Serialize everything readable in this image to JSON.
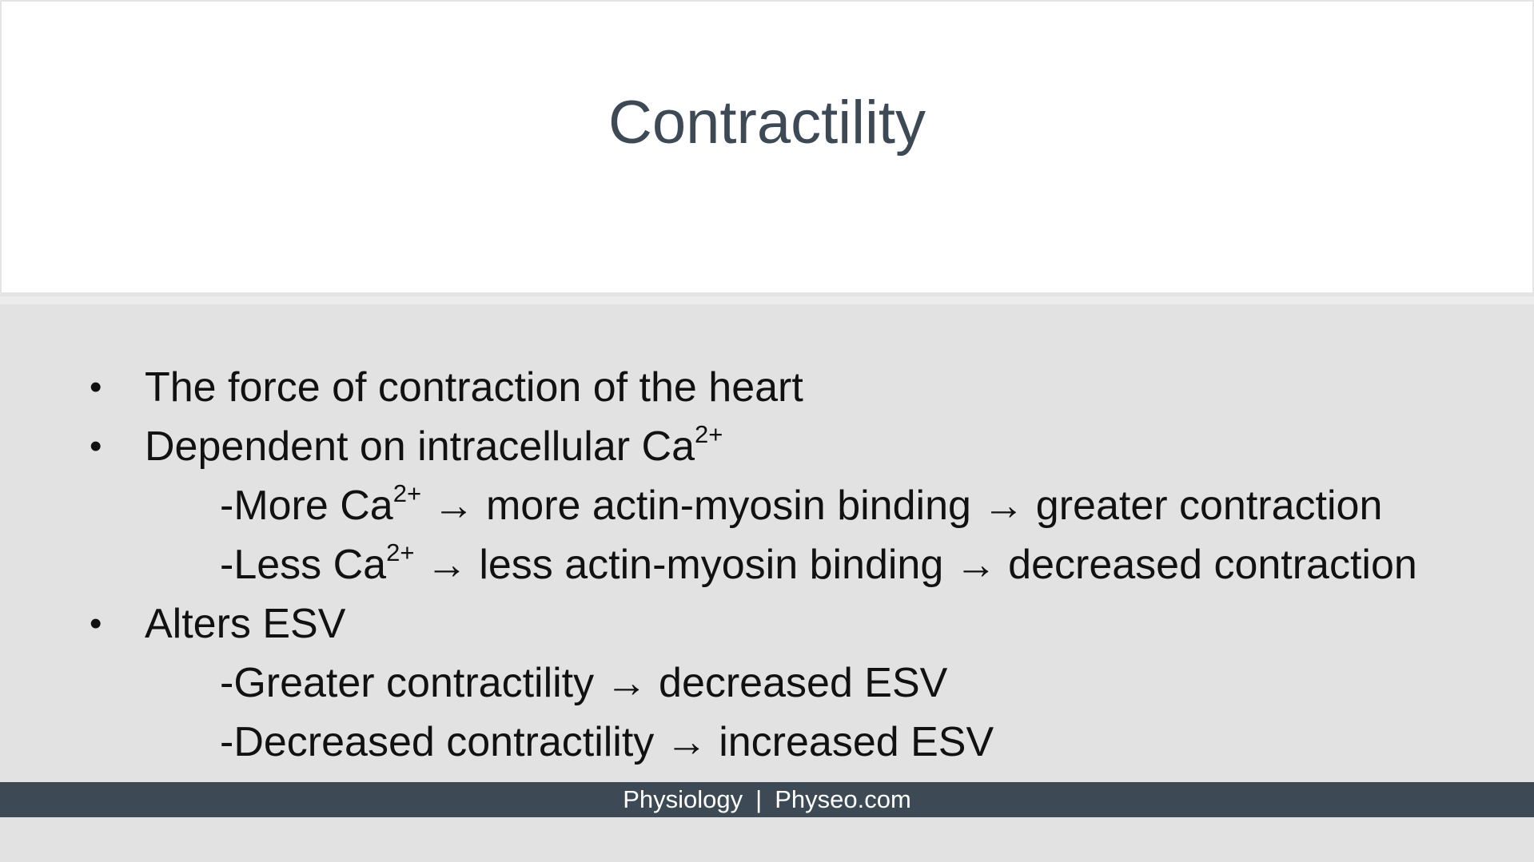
{
  "slide": {
    "title": "Contractility",
    "items": [
      {
        "bullet": "•",
        "text": "The force of contraction of the heart",
        "sup": "",
        "rest": ""
      },
      {
        "bullet": "•",
        "text": "Dependent on intracellular Ca",
        "sup": "2+",
        "rest": ""
      },
      {
        "bullet": "",
        "text": "-More Ca",
        "sup": "2+",
        "rest": " → more actin-myosin binding → greater contraction"
      },
      {
        "bullet": "",
        "text": "-Less Ca",
        "sup": "2+",
        "rest": " → less actin-myosin binding → decreased contraction"
      },
      {
        "bullet": "•",
        "text": "Alters ESV",
        "sup": "",
        "rest": ""
      },
      {
        "bullet": "",
        "text": "-Greater contractility → decreased ESV",
        "sup": "",
        "rest": ""
      },
      {
        "bullet": "",
        "text": "-Decreased contractility → increased ESV",
        "sup": "",
        "rest": ""
      }
    ]
  },
  "footer": {
    "left": "Physiology",
    "separator": "|",
    "right": "Physeo.com"
  },
  "colors": {
    "title": "#3d4a56",
    "footer_bg": "#3d4a56",
    "content_bg": "#e2e2e2"
  }
}
